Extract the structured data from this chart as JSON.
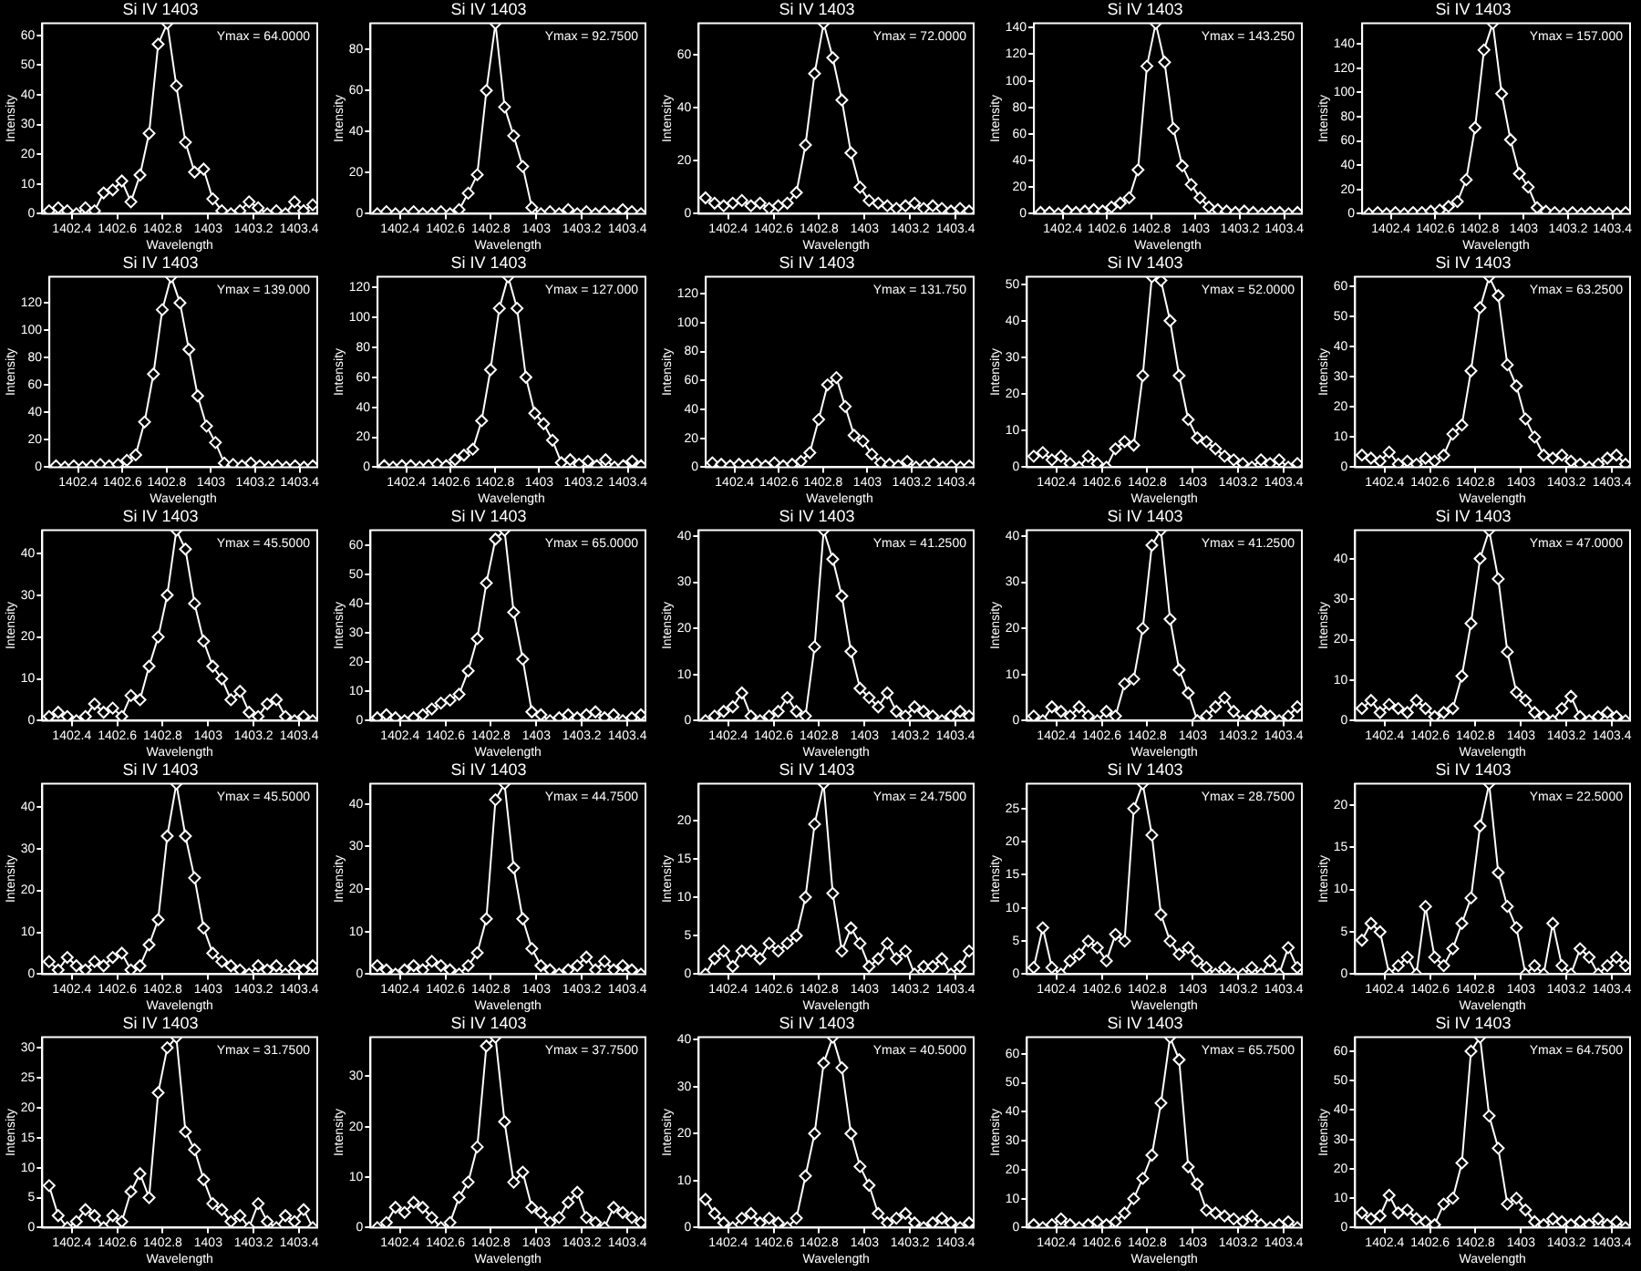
{
  "chart_data": [
    {
      "type": "line",
      "title": "Si IV 1403",
      "xlabel": "Wavelength",
      "ylabel": "Intensity",
      "color": "#ffffff",
      "marker": "diamond",
      "annotations": [
        "Ymax = 64.0000"
      ],
      "xlim": [
        1402.27,
        1403.48
      ],
      "xticks": [
        1402.4,
        1402.6,
        1402.8,
        1403.0,
        1403.2,
        1403.4
      ],
      "ylim": [
        0,
        64
      ],
      "yticks": [
        0,
        10,
        20,
        30,
        40,
        50,
        60
      ],
      "x": [
        1402.3,
        1402.34,
        1402.38,
        1402.42,
        1402.46,
        1402.5,
        1402.54,
        1402.58,
        1402.62,
        1402.66,
        1402.7,
        1402.74,
        1402.78,
        1402.82,
        1402.86,
        1402.9,
        1402.94,
        1402.98,
        1403.02,
        1403.06,
        1403.1,
        1403.14,
        1403.18,
        1403.22,
        1403.26,
        1403.3,
        1403.34,
        1403.38,
        1403.42,
        1403.46
      ],
      "values": [
        1,
        2,
        1,
        0,
        2,
        1,
        7,
        8,
        11,
        4,
        13,
        27,
        57,
        64,
        43,
        24,
        14,
        15,
        5,
        1,
        0,
        1,
        4,
        2,
        0,
        1,
        0,
        4,
        1,
        3
      ]
    },
    {
      "type": "line",
      "title": "Si IV 1403",
      "xlabel": "Wavelength",
      "ylabel": "Intensity",
      "color": "#ffffff",
      "marker": "diamond",
      "annotations": [
        "Ymax = 92.7500"
      ],
      "xlim": [
        1402.27,
        1403.48
      ],
      "xticks": [
        1402.4,
        1402.6,
        1402.8,
        1403.0,
        1403.2,
        1403.4
      ],
      "ylim": [
        0,
        92.75
      ],
      "yticks": [
        0,
        20,
        40,
        60,
        80
      ],
      "x": [
        1402.3,
        1402.34,
        1402.38,
        1402.42,
        1402.46,
        1402.5,
        1402.54,
        1402.58,
        1402.62,
        1402.66,
        1402.7,
        1402.74,
        1402.78,
        1402.82,
        1402.86,
        1402.9,
        1402.94,
        1402.98,
        1403.02,
        1403.06,
        1403.1,
        1403.14,
        1403.18,
        1403.22,
        1403.26,
        1403.3,
        1403.34,
        1403.38,
        1403.42,
        1403.46
      ],
      "values": [
        0,
        1,
        0,
        0,
        1,
        0,
        0,
        1,
        0,
        2,
        10,
        19,
        60,
        92.75,
        52,
        38,
        23,
        3,
        0,
        1,
        0,
        2,
        0,
        1,
        0,
        1,
        0,
        2,
        1,
        0
      ]
    },
    {
      "type": "line",
      "title": "Si IV 1403",
      "xlabel": "Wavelength",
      "ylabel": "Intensity",
      "color": "#ffffff",
      "marker": "diamond",
      "annotations": [
        "Ymax = 72.0000"
      ],
      "xlim": [
        1402.27,
        1403.48
      ],
      "xticks": [
        1402.4,
        1402.6,
        1402.8,
        1403.0,
        1403.2,
        1403.4
      ],
      "ylim": [
        0,
        72
      ],
      "yticks": [
        0,
        20,
        40,
        60
      ],
      "x": [
        1402.3,
        1402.34,
        1402.38,
        1402.42,
        1402.46,
        1402.5,
        1402.54,
        1402.58,
        1402.62,
        1402.66,
        1402.7,
        1402.74,
        1402.78,
        1402.82,
        1402.86,
        1402.9,
        1402.94,
        1402.98,
        1403.02,
        1403.06,
        1403.1,
        1403.14,
        1403.18,
        1403.22,
        1403.26,
        1403.3,
        1403.34,
        1403.38,
        1403.42,
        1403.46
      ],
      "values": [
        6,
        4,
        3,
        4,
        5,
        3,
        4,
        2,
        3,
        4,
        8,
        26,
        53,
        72,
        59,
        43,
        23,
        10,
        5,
        4,
        3,
        2,
        3,
        4,
        2,
        3,
        2,
        1,
        2,
        1
      ]
    },
    {
      "type": "line",
      "title": "Si IV 1403",
      "xlabel": "Wavelength",
      "ylabel": "Intensity",
      "color": "#ffffff",
      "marker": "diamond",
      "annotations": [
        "Ymax = 143.250"
      ],
      "xlim": [
        1402.27,
        1403.48
      ],
      "xticks": [
        1402.4,
        1402.6,
        1402.8,
        1403.0,
        1403.2,
        1403.4
      ],
      "ylim": [
        0,
        143.25
      ],
      "yticks": [
        0,
        20,
        40,
        60,
        80,
        100,
        120,
        140
      ],
      "x": [
        1402.3,
        1402.34,
        1402.38,
        1402.42,
        1402.46,
        1402.5,
        1402.54,
        1402.58,
        1402.62,
        1402.66,
        1402.7,
        1402.74,
        1402.78,
        1402.82,
        1402.86,
        1402.9,
        1402.94,
        1402.98,
        1403.02,
        1403.06,
        1403.1,
        1403.14,
        1403.18,
        1403.22,
        1403.26,
        1403.3,
        1403.34,
        1403.38,
        1403.42,
        1403.46
      ],
      "values": [
        1,
        1,
        0,
        2,
        1,
        2,
        3,
        2,
        5,
        8,
        12,
        33,
        111,
        143.25,
        114,
        64,
        36,
        22,
        12,
        5,
        3,
        2,
        1,
        2,
        1,
        0,
        1,
        1,
        0,
        1
      ]
    },
    {
      "type": "line",
      "title": "Si IV 1403",
      "xlabel": "Wavelength",
      "ylabel": "Intensity",
      "color": "#ffffff",
      "marker": "diamond",
      "annotations": [
        "Ymax = 157.000"
      ],
      "xlim": [
        1402.27,
        1403.48
      ],
      "xticks": [
        1402.4,
        1402.6,
        1402.8,
        1403.0,
        1403.2,
        1403.4
      ],
      "ylim": [
        0,
        157
      ],
      "yticks": [
        0,
        20,
        40,
        60,
        80,
        100,
        120,
        140
      ],
      "x": [
        1402.3,
        1402.34,
        1402.38,
        1402.42,
        1402.46,
        1402.5,
        1402.54,
        1402.58,
        1402.62,
        1402.66,
        1402.7,
        1402.74,
        1402.78,
        1402.82,
        1402.86,
        1402.9,
        1402.94,
        1402.98,
        1403.02,
        1403.06,
        1403.1,
        1403.14,
        1403.18,
        1403.22,
        1403.26,
        1403.3,
        1403.34,
        1403.38,
        1403.42,
        1403.46
      ],
      "values": [
        0,
        1,
        0,
        1,
        0,
        1,
        1,
        2,
        3,
        6,
        10,
        28,
        71,
        135,
        157,
        99,
        61,
        33,
        22,
        5,
        2,
        1,
        0,
        1,
        0,
        1,
        0,
        1,
        0,
        1
      ]
    },
    {
      "type": "line",
      "title": "Si IV 1403",
      "xlabel": "Wavelength",
      "ylabel": "Intensity",
      "color": "#ffffff",
      "marker": "diamond",
      "annotations": [
        "Ymax = 139.000"
      ],
      "xlim": [
        1402.27,
        1403.48
      ],
      "xticks": [
        1402.4,
        1402.6,
        1402.8,
        1403.0,
        1403.2,
        1403.4
      ],
      "ylim": [
        0,
        139
      ],
      "yticks": [
        0,
        20,
        40,
        60,
        80,
        100,
        120
      ],
      "x": [
        1402.3,
        1402.34,
        1402.38,
        1402.42,
        1402.46,
        1402.5,
        1402.54,
        1402.58,
        1402.62,
        1402.66,
        1402.7,
        1402.74,
        1402.78,
        1402.82,
        1402.86,
        1402.9,
        1402.94,
        1402.98,
        1403.02,
        1403.06,
        1403.1,
        1403.14,
        1403.18,
        1403.22,
        1403.26,
        1403.3,
        1403.34,
        1403.38,
        1403.42,
        1403.46
      ],
      "values": [
        1,
        0,
        1,
        0,
        1,
        2,
        1,
        2,
        5,
        9,
        33,
        68,
        115,
        139,
        120,
        86,
        52,
        30,
        18,
        3,
        2,
        1,
        3,
        1,
        0,
        1,
        0,
        1,
        0,
        1
      ]
    },
    {
      "type": "line",
      "title": "Si IV 1403",
      "xlabel": "Wavelength",
      "ylabel": "Intensity",
      "color": "#ffffff",
      "marker": "diamond",
      "annotations": [
        "Ymax = 127.000"
      ],
      "xlim": [
        1402.27,
        1403.48
      ],
      "xticks": [
        1402.4,
        1402.6,
        1402.8,
        1403.0,
        1403.2,
        1403.4
      ],
      "ylim": [
        0,
        127
      ],
      "yticks": [
        0,
        20,
        40,
        60,
        80,
        100,
        120
      ],
      "x": [
        1402.3,
        1402.34,
        1402.38,
        1402.42,
        1402.46,
        1402.5,
        1402.54,
        1402.58,
        1402.62,
        1402.66,
        1402.7,
        1402.74,
        1402.78,
        1402.82,
        1402.86,
        1402.9,
        1402.94,
        1402.98,
        1403.02,
        1403.06,
        1403.1,
        1403.14,
        1403.18,
        1403.22,
        1403.26,
        1403.3,
        1403.34,
        1403.38,
        1403.42,
        1403.46
      ],
      "values": [
        1,
        0,
        1,
        1,
        0,
        1,
        2,
        1,
        5,
        8,
        12,
        31,
        65,
        106,
        127,
        106,
        60,
        36,
        29,
        18,
        3,
        5,
        2,
        4,
        1,
        5,
        0,
        1,
        4,
        1
      ]
    },
    {
      "type": "line",
      "title": "Si IV 1403",
      "xlabel": "Wavelength",
      "ylabel": "Intensity",
      "color": "#ffffff",
      "marker": "diamond",
      "annotations": [
        "Ymax = 131.750"
      ],
      "xlim": [
        1402.27,
        1403.48
      ],
      "xticks": [
        1402.4,
        1402.6,
        1402.8,
        1403.0,
        1403.2,
        1403.4
      ],
      "ylim": [
        0,
        131.75
      ],
      "yticks": [
        0,
        20,
        40,
        60,
        80,
        100,
        120
      ],
      "x": [
        1402.3,
        1402.34,
        1402.38,
        1402.42,
        1402.46,
        1402.5,
        1402.54,
        1402.58,
        1402.62,
        1402.66,
        1402.7,
        1402.74,
        1402.78,
        1402.82,
        1402.86,
        1402.9,
        1402.94,
        1402.98,
        1403.02,
        1403.06,
        1403.1,
        1403.14,
        1403.18,
        1403.22,
        1403.26,
        1403.3,
        1403.34,
        1403.38,
        1403.42,
        1403.46
      ],
      "values": [
        3,
        2,
        1,
        2,
        1,
        2,
        1,
        3,
        1,
        2,
        4,
        10,
        33,
        57,
        62,
        42,
        22,
        18,
        9,
        3,
        2,
        1,
        4,
        0,
        1,
        2,
        0,
        1,
        0,
        1
      ]
    },
    {
      "type": "line",
      "title": "Si IV 1403",
      "xlabel": "Wavelength",
      "ylabel": "Intensity",
      "color": "#ffffff",
      "marker": "diamond",
      "annotations": [
        "Ymax = 52.0000"
      ],
      "xlim": [
        1402.27,
        1403.48
      ],
      "xticks": [
        1402.4,
        1402.6,
        1402.8,
        1403.0,
        1403.2,
        1403.4
      ],
      "ylim": [
        0,
        52
      ],
      "yticks": [
        0,
        10,
        20,
        30,
        40,
        50
      ],
      "x": [
        1402.3,
        1402.34,
        1402.38,
        1402.42,
        1402.46,
        1402.5,
        1402.54,
        1402.58,
        1402.62,
        1402.66,
        1402.7,
        1402.74,
        1402.78,
        1402.82,
        1402.86,
        1402.9,
        1402.94,
        1402.98,
        1403.02,
        1403.06,
        1403.1,
        1403.14,
        1403.18,
        1403.22,
        1403.26,
        1403.3,
        1403.34,
        1403.38,
        1403.42,
        1403.46
      ],
      "values": [
        3,
        4,
        2,
        3,
        1,
        0,
        3,
        1,
        0,
        5,
        7,
        6,
        25,
        52,
        51,
        40,
        25,
        13,
        8,
        7,
        5,
        3,
        2,
        1,
        0,
        2,
        1,
        2,
        0,
        1
      ]
    },
    {
      "type": "line",
      "title": "Si IV 1403",
      "xlabel": "Wavelength",
      "ylabel": "Intensity",
      "color": "#ffffff",
      "marker": "diamond",
      "annotations": [
        "Ymax = 63.2500"
      ],
      "xlim": [
        1402.27,
        1403.48
      ],
      "xticks": [
        1402.4,
        1402.6,
        1402.8,
        1403.0,
        1403.2,
        1403.4
      ],
      "ylim": [
        0,
        63.25
      ],
      "yticks": [
        0,
        10,
        20,
        30,
        40,
        50,
        60
      ],
      "x": [
        1402.3,
        1402.34,
        1402.38,
        1402.42,
        1402.46,
        1402.5,
        1402.54,
        1402.58,
        1402.62,
        1402.66,
        1402.7,
        1402.74,
        1402.78,
        1402.82,
        1402.86,
        1402.9,
        1402.94,
        1402.98,
        1403.02,
        1403.06,
        1403.1,
        1403.14,
        1403.18,
        1403.22,
        1403.26,
        1403.3,
        1403.34,
        1403.38,
        1403.42,
        1403.46
      ],
      "values": [
        4,
        3,
        2,
        5,
        1,
        2,
        1,
        3,
        2,
        4,
        11,
        14,
        32,
        53,
        63.25,
        57,
        34,
        27,
        16,
        10,
        4,
        3,
        4,
        2,
        1,
        0,
        1,
        3,
        4,
        1
      ]
    },
    {
      "type": "line",
      "title": "Si IV 1403",
      "xlabel": "Wavelength",
      "ylabel": "Intensity",
      "color": "#ffffff",
      "marker": "diamond",
      "annotations": [
        "Ymax = 45.5000"
      ],
      "xlim": [
        1402.27,
        1403.48
      ],
      "xticks": [
        1402.4,
        1402.6,
        1402.8,
        1403.0,
        1403.2,
        1403.4
      ],
      "ylim": [
        0,
        45.5
      ],
      "yticks": [
        0,
        10,
        20,
        30,
        40
      ],
      "x": [
        1402.3,
        1402.34,
        1402.38,
        1402.42,
        1402.46,
        1402.5,
        1402.54,
        1402.58,
        1402.62,
        1402.66,
        1402.7,
        1402.74,
        1402.78,
        1402.82,
        1402.86,
        1402.9,
        1402.94,
        1402.98,
        1403.02,
        1403.06,
        1403.1,
        1403.14,
        1403.18,
        1403.22,
        1403.26,
        1403.3,
        1403.34,
        1403.38,
        1403.42,
        1403.46
      ],
      "values": [
        1,
        2,
        1,
        0,
        1,
        4,
        2,
        3,
        1,
        6,
        5,
        13,
        20,
        30,
        45.5,
        41,
        28,
        19,
        13,
        10,
        5,
        7,
        2,
        1,
        4,
        5,
        1,
        0,
        1,
        0
      ]
    },
    {
      "type": "line",
      "title": "Si IV 1403",
      "xlabel": "Wavelength",
      "ylabel": "Intensity",
      "color": "#ffffff",
      "marker": "diamond",
      "annotations": [
        "Ymax = 65.0000"
      ],
      "xlim": [
        1402.27,
        1403.48
      ],
      "xticks": [
        1402.4,
        1402.6,
        1402.8,
        1403.0,
        1403.2,
        1403.4
      ],
      "ylim": [
        0,
        65
      ],
      "yticks": [
        0,
        10,
        20,
        30,
        40,
        50,
        60
      ],
      "x": [
        1402.3,
        1402.34,
        1402.38,
        1402.42,
        1402.46,
        1402.5,
        1402.54,
        1402.58,
        1402.62,
        1402.66,
        1402.7,
        1402.74,
        1402.78,
        1402.82,
        1402.86,
        1402.9,
        1402.94,
        1402.98,
        1403.02,
        1403.06,
        1403.1,
        1403.14,
        1403.18,
        1403.22,
        1403.26,
        1403.3,
        1403.34,
        1403.38,
        1403.42,
        1403.46
      ],
      "values": [
        1,
        2,
        1,
        0,
        1,
        2,
        4,
        6,
        7,
        9,
        17,
        28,
        47,
        62,
        65,
        37,
        21,
        3,
        2,
        0,
        1,
        2,
        1,
        2,
        3,
        1,
        2,
        0,
        1,
        2
      ]
    },
    {
      "type": "line",
      "title": "Si IV 1403",
      "xlabel": "Wavelength",
      "ylabel": "Intensity",
      "color": "#ffffff",
      "marker": "diamond",
      "annotations": [
        "Ymax = 41.2500"
      ],
      "xlim": [
        1402.27,
        1403.48
      ],
      "xticks": [
        1402.4,
        1402.6,
        1402.8,
        1403.0,
        1403.2,
        1403.4
      ],
      "ylim": [
        0,
        41.25
      ],
      "yticks": [
        0,
        10,
        20,
        30,
        40
      ],
      "x": [
        1402.3,
        1402.34,
        1402.38,
        1402.42,
        1402.46,
        1402.5,
        1402.54,
        1402.58,
        1402.62,
        1402.66,
        1402.7,
        1402.74,
        1402.78,
        1402.82,
        1402.86,
        1402.9,
        1402.94,
        1402.98,
        1403.02,
        1403.06,
        1403.1,
        1403.14,
        1403.18,
        1403.22,
        1403.26,
        1403.3,
        1403.34,
        1403.38,
        1403.42,
        1403.46
      ],
      "values": [
        0,
        1,
        2,
        3,
        6,
        1,
        0,
        1,
        2,
        5,
        2,
        1,
        16,
        41.25,
        35,
        27,
        15,
        7,
        5,
        3,
        6,
        2,
        1,
        3,
        2,
        1,
        0,
        1,
        2,
        1
      ]
    },
    {
      "type": "line",
      "title": "Si IV 1403",
      "xlabel": "Wavelength",
      "ylabel": "Intensity",
      "color": "#ffffff",
      "marker": "diamond",
      "annotations": [
        "Ymax = 41.2500"
      ],
      "xlim": [
        1402.27,
        1403.48
      ],
      "xticks": [
        1402.4,
        1402.6,
        1402.8,
        1403.0,
        1403.2,
        1403.4
      ],
      "ylim": [
        0,
        41.25
      ],
      "yticks": [
        0,
        10,
        20,
        30,
        40
      ],
      "x": [
        1402.3,
        1402.34,
        1402.38,
        1402.42,
        1402.46,
        1402.5,
        1402.54,
        1402.58,
        1402.62,
        1402.66,
        1402.7,
        1402.74,
        1402.78,
        1402.82,
        1402.86,
        1402.9,
        1402.94,
        1402.98,
        1403.02,
        1403.06,
        1403.1,
        1403.14,
        1403.18,
        1403.22,
        1403.26,
        1403.3,
        1403.34,
        1403.38,
        1403.42,
        1403.46
      ],
      "values": [
        1,
        0,
        3,
        2,
        1,
        3,
        1,
        0,
        2,
        1,
        8,
        9,
        20,
        38,
        41.25,
        22,
        11,
        6,
        0,
        1,
        3,
        5,
        2,
        0,
        1,
        2,
        1,
        0,
        1,
        3
      ]
    },
    {
      "type": "line",
      "title": "Si IV 1403",
      "xlabel": "Wavelength",
      "ylabel": "Intensity",
      "color": "#ffffff",
      "marker": "diamond",
      "annotations": [
        "Ymax = 47.0000"
      ],
      "xlim": [
        1402.27,
        1403.48
      ],
      "xticks": [
        1402.4,
        1402.6,
        1402.8,
        1403.0,
        1403.2,
        1403.4
      ],
      "ylim": [
        0,
        47
      ],
      "yticks": [
        0,
        10,
        20,
        30,
        40
      ],
      "x": [
        1402.3,
        1402.34,
        1402.38,
        1402.42,
        1402.46,
        1402.5,
        1402.54,
        1402.58,
        1402.62,
        1402.66,
        1402.7,
        1402.74,
        1402.78,
        1402.82,
        1402.86,
        1402.9,
        1402.94,
        1402.98,
        1403.02,
        1403.06,
        1403.1,
        1403.14,
        1403.18,
        1403.22,
        1403.26,
        1403.3,
        1403.34,
        1403.38,
        1403.42,
        1403.46
      ],
      "values": [
        3,
        5,
        2,
        4,
        3,
        2,
        5,
        3,
        1,
        2,
        3,
        11,
        24,
        40,
        47,
        35,
        17,
        7,
        5,
        2,
        1,
        0,
        3,
        6,
        1,
        0,
        1,
        2,
        1,
        0
      ]
    },
    {
      "type": "line",
      "title": "Si IV 1403",
      "xlabel": "Wavelength",
      "ylabel": "Intensity",
      "color": "#ffffff",
      "marker": "diamond",
      "annotations": [
        "Ymax = 45.5000"
      ],
      "xlim": [
        1402.27,
        1403.48
      ],
      "xticks": [
        1402.4,
        1402.6,
        1402.8,
        1403.0,
        1403.2,
        1403.4
      ],
      "ylim": [
        0,
        45.5
      ],
      "yticks": [
        0,
        10,
        20,
        30,
        40
      ],
      "x": [
        1402.3,
        1402.34,
        1402.38,
        1402.42,
        1402.46,
        1402.5,
        1402.54,
        1402.58,
        1402.62,
        1402.66,
        1402.7,
        1402.74,
        1402.78,
        1402.82,
        1402.86,
        1402.9,
        1402.94,
        1402.98,
        1403.02,
        1403.06,
        1403.1,
        1403.14,
        1403.18,
        1403.22,
        1403.26,
        1403.3,
        1403.34,
        1403.38,
        1403.42,
        1403.46
      ],
      "values": [
        3,
        1,
        4,
        2,
        1,
        3,
        2,
        4,
        5,
        1,
        2,
        7,
        13,
        33,
        45.5,
        33,
        23,
        11,
        5,
        3,
        2,
        1,
        0,
        2,
        1,
        2,
        0,
        2,
        1,
        2
      ]
    },
    {
      "type": "line",
      "title": "Si IV 1403",
      "xlabel": "Wavelength",
      "ylabel": "Intensity",
      "color": "#ffffff",
      "marker": "diamond",
      "annotations": [
        "Ymax = 44.7500"
      ],
      "xlim": [
        1402.27,
        1403.48
      ],
      "xticks": [
        1402.4,
        1402.6,
        1402.8,
        1403.0,
        1403.2,
        1403.4
      ],
      "ylim": [
        0,
        44.75
      ],
      "yticks": [
        0,
        10,
        20,
        30,
        40
      ],
      "x": [
        1402.3,
        1402.34,
        1402.38,
        1402.42,
        1402.46,
        1402.5,
        1402.54,
        1402.58,
        1402.62,
        1402.66,
        1402.7,
        1402.74,
        1402.78,
        1402.82,
        1402.86,
        1402.9,
        1402.94,
        1402.98,
        1403.02,
        1403.06,
        1403.1,
        1403.14,
        1403.18,
        1403.22,
        1403.26,
        1403.3,
        1403.34,
        1403.38,
        1403.42,
        1403.46
      ],
      "values": [
        2,
        1,
        0,
        1,
        2,
        1,
        3,
        2,
        1,
        0,
        2,
        5,
        13,
        41,
        44.75,
        25,
        13,
        6,
        2,
        1,
        0,
        1,
        2,
        4,
        1,
        3,
        1,
        2,
        1,
        0
      ]
    },
    {
      "type": "line",
      "title": "Si IV 1403",
      "xlabel": "Wavelength",
      "ylabel": "Intensity",
      "color": "#ffffff",
      "marker": "diamond",
      "annotations": [
        "Ymax = 24.7500"
      ],
      "xlim": [
        1402.27,
        1403.48
      ],
      "xticks": [
        1402.4,
        1402.6,
        1402.8,
        1403.0,
        1403.2,
        1403.4
      ],
      "ylim": [
        0,
        24.75
      ],
      "yticks": [
        0,
        5,
        10,
        15,
        20
      ],
      "x": [
        1402.3,
        1402.34,
        1402.38,
        1402.42,
        1402.46,
        1402.5,
        1402.54,
        1402.58,
        1402.62,
        1402.66,
        1402.7,
        1402.74,
        1402.78,
        1402.82,
        1402.86,
        1402.9,
        1402.94,
        1402.98,
        1403.02,
        1403.06,
        1403.1,
        1403.14,
        1403.18,
        1403.22,
        1403.26,
        1403.3,
        1403.34,
        1403.38,
        1403.42,
        1403.46
      ],
      "values": [
        0,
        2,
        3,
        1,
        3,
        3,
        2,
        4,
        3,
        4,
        5,
        10,
        19.5,
        24.75,
        10.5,
        3,
        6,
        4,
        1,
        2,
        4,
        2,
        3,
        0,
        1,
        1,
        2,
        0,
        1,
        3
      ]
    },
    {
      "type": "line",
      "title": "Si IV 1403",
      "xlabel": "Wavelength",
      "ylabel": "Intensity",
      "color": "#ffffff",
      "marker": "diamond",
      "annotations": [
        "Ymax = 28.7500"
      ],
      "xlim": [
        1402.27,
        1403.48
      ],
      "xticks": [
        1402.4,
        1402.6,
        1402.8,
        1403.0,
        1403.2,
        1403.4
      ],
      "ylim": [
        0,
        28.75
      ],
      "yticks": [
        0,
        5,
        10,
        15,
        20,
        25
      ],
      "x": [
        1402.3,
        1402.34,
        1402.38,
        1402.42,
        1402.46,
        1402.5,
        1402.54,
        1402.58,
        1402.62,
        1402.66,
        1402.7,
        1402.74,
        1402.78,
        1402.82,
        1402.86,
        1402.9,
        1402.94,
        1402.98,
        1403.02,
        1403.06,
        1403.1,
        1403.14,
        1403.18,
        1403.22,
        1403.26,
        1403.3,
        1403.34,
        1403.38,
        1403.42,
        1403.46
      ],
      "values": [
        1,
        7,
        1,
        0,
        2,
        3,
        5,
        4,
        2,
        6,
        5,
        25,
        28.75,
        21,
        9,
        5,
        3,
        4,
        2,
        1,
        0,
        1,
        0,
        0,
        1,
        0,
        2,
        0,
        4,
        1
      ]
    },
    {
      "type": "line",
      "title": "Si IV 1403",
      "xlabel": "Wavelength",
      "ylabel": "Intensity",
      "color": "#ffffff",
      "marker": "diamond",
      "annotations": [
        "Ymax = 22.5000"
      ],
      "xlim": [
        1402.27,
        1403.48
      ],
      "xticks": [
        1402.4,
        1402.6,
        1402.8,
        1403.0,
        1403.2,
        1403.4
      ],
      "ylim": [
        0,
        22.5
      ],
      "yticks": [
        0,
        5,
        10,
        15,
        20
      ],
      "x": [
        1402.3,
        1402.34,
        1402.38,
        1402.42,
        1402.46,
        1402.5,
        1402.54,
        1402.58,
        1402.62,
        1402.66,
        1402.7,
        1402.74,
        1402.78,
        1402.82,
        1402.86,
        1402.9,
        1402.94,
        1402.98,
        1403.02,
        1403.06,
        1403.1,
        1403.14,
        1403.18,
        1403.22,
        1403.26,
        1403.3,
        1403.34,
        1403.38,
        1403.42,
        1403.46
      ],
      "values": [
        4,
        6,
        5,
        0,
        1,
        2,
        0,
        8,
        2,
        1,
        3,
        6,
        9,
        17.5,
        22.5,
        12,
        8,
        5.5,
        0,
        1,
        0,
        6,
        1,
        0,
        3,
        2,
        0,
        1,
        2,
        1
      ]
    },
    {
      "type": "line",
      "title": "Si IV 1403",
      "xlabel": "Wavelength",
      "ylabel": "Intensity",
      "color": "#ffffff",
      "marker": "diamond",
      "annotations": [
        "Ymax = 31.7500"
      ],
      "xlim": [
        1402.27,
        1403.48
      ],
      "xticks": [
        1402.4,
        1402.6,
        1402.8,
        1403.0,
        1403.2,
        1403.4
      ],
      "ylim": [
        0,
        31.75
      ],
      "yticks": [
        0,
        5,
        10,
        15,
        20,
        25,
        30
      ],
      "x": [
        1402.3,
        1402.34,
        1402.38,
        1402.42,
        1402.46,
        1402.5,
        1402.54,
        1402.58,
        1402.62,
        1402.66,
        1402.7,
        1402.74,
        1402.78,
        1402.82,
        1402.86,
        1402.9,
        1402.94,
        1402.98,
        1403.02,
        1403.06,
        1403.1,
        1403.14,
        1403.18,
        1403.22,
        1403.26,
        1403.3,
        1403.34,
        1403.38,
        1403.42,
        1403.46
      ],
      "values": [
        7,
        2,
        0,
        1,
        3,
        2,
        0,
        2,
        1,
        6,
        9,
        5,
        22.5,
        30,
        31.75,
        16,
        13,
        8,
        4,
        3,
        1,
        2,
        0,
        4,
        1,
        0,
        2,
        1,
        3,
        0
      ]
    },
    {
      "type": "line",
      "title": "Si IV 1403",
      "xlabel": "Wavelength",
      "ylabel": "Intensity",
      "color": "#ffffff",
      "marker": "diamond",
      "annotations": [
        "Ymax = 37.7500"
      ],
      "xlim": [
        1402.27,
        1403.48
      ],
      "xticks": [
        1402.4,
        1402.6,
        1402.8,
        1403.0,
        1403.2,
        1403.4
      ],
      "ylim": [
        0,
        37.75
      ],
      "yticks": [
        0,
        10,
        20,
        30
      ],
      "x": [
        1402.3,
        1402.34,
        1402.38,
        1402.42,
        1402.46,
        1402.5,
        1402.54,
        1402.58,
        1402.62,
        1402.66,
        1402.7,
        1402.74,
        1402.78,
        1402.82,
        1402.86,
        1402.9,
        1402.94,
        1402.98,
        1403.02,
        1403.06,
        1403.1,
        1403.14,
        1403.18,
        1403.22,
        1403.26,
        1403.3,
        1403.34,
        1403.38,
        1403.42,
        1403.46
      ],
      "values": [
        0,
        1,
        4,
        3,
        5,
        4,
        2,
        0,
        1,
        6,
        9,
        16,
        36,
        37.75,
        21,
        9,
        11,
        4,
        3,
        1,
        2,
        5,
        7,
        2,
        1,
        0,
        4,
        3,
        2,
        1
      ]
    },
    {
      "type": "line",
      "title": "Si IV 1403",
      "xlabel": "Wavelength",
      "ylabel": "Intensity",
      "color": "#ffffff",
      "marker": "diamond",
      "annotations": [
        "Ymax = 40.5000"
      ],
      "xlim": [
        1402.27,
        1403.48
      ],
      "xticks": [
        1402.4,
        1402.6,
        1402.8,
        1403.0,
        1403.2,
        1403.4
      ],
      "ylim": [
        0,
        40.5
      ],
      "yticks": [
        0,
        10,
        20,
        30,
        40
      ],
      "x": [
        1402.3,
        1402.34,
        1402.38,
        1402.42,
        1402.46,
        1402.5,
        1402.54,
        1402.58,
        1402.62,
        1402.66,
        1402.7,
        1402.74,
        1402.78,
        1402.82,
        1402.86,
        1402.9,
        1402.94,
        1402.98,
        1403.02,
        1403.06,
        1403.1,
        1403.14,
        1403.18,
        1403.22,
        1403.26,
        1403.3,
        1403.34,
        1403.38,
        1403.42,
        1403.46
      ],
      "values": [
        6,
        3,
        1,
        0,
        2,
        3,
        1,
        2,
        1,
        0,
        2,
        11,
        20,
        35,
        40.5,
        34,
        20,
        13,
        9,
        3,
        1,
        2,
        3,
        1,
        0,
        1,
        2,
        1,
        0,
        1
      ]
    },
    {
      "type": "line",
      "title": "Si IV 1403",
      "xlabel": "Wavelength",
      "ylabel": "Intensity",
      "color": "#ffffff",
      "marker": "diamond",
      "annotations": [
        "Ymax = 65.7500"
      ],
      "xlim": [
        1402.27,
        1403.48
      ],
      "xticks": [
        1402.4,
        1402.6,
        1402.8,
        1403.0,
        1403.2,
        1403.4
      ],
      "ylim": [
        0,
        65.75
      ],
      "yticks": [
        0,
        10,
        20,
        30,
        40,
        50,
        60
      ],
      "x": [
        1402.3,
        1402.34,
        1402.38,
        1402.42,
        1402.46,
        1402.5,
        1402.54,
        1402.58,
        1402.62,
        1402.66,
        1402.7,
        1402.74,
        1402.78,
        1402.82,
        1402.86,
        1402.9,
        1402.94,
        1402.98,
        1403.02,
        1403.06,
        1403.1,
        1403.14,
        1403.18,
        1403.22,
        1403.26,
        1403.3,
        1403.34,
        1403.38,
        1403.42,
        1403.46
      ],
      "values": [
        1,
        0,
        1,
        3,
        1,
        0,
        1,
        2,
        1,
        2,
        5,
        10,
        17,
        25,
        43,
        65.75,
        58,
        21,
        15,
        6,
        5,
        4,
        3,
        2,
        4,
        1,
        0,
        1,
        2,
        0
      ]
    },
    {
      "type": "line",
      "title": "Si IV 1403",
      "xlabel": "Wavelength",
      "ylabel": "Intensity",
      "color": "#ffffff",
      "marker": "diamond",
      "annotations": [
        "Ymax = 64.7500"
      ],
      "xlim": [
        1402.27,
        1403.48
      ],
      "xticks": [
        1402.4,
        1402.6,
        1402.8,
        1403.0,
        1403.2,
        1403.4
      ],
      "ylim": [
        0,
        64.75
      ],
      "yticks": [
        0,
        10,
        20,
        30,
        40,
        50,
        60
      ],
      "x": [
        1402.3,
        1402.34,
        1402.38,
        1402.42,
        1402.46,
        1402.5,
        1402.54,
        1402.58,
        1402.62,
        1402.66,
        1402.7,
        1402.74,
        1402.78,
        1402.82,
        1402.86,
        1402.9,
        1402.94,
        1402.98,
        1403.02,
        1403.06,
        1403.1,
        1403.14,
        1403.18,
        1403.22,
        1403.26,
        1403.3,
        1403.34,
        1403.38,
        1403.42,
        1403.46
      ],
      "values": [
        5,
        3,
        4,
        11,
        5,
        6,
        3,
        2,
        1,
        8,
        10,
        22,
        60,
        64.75,
        38,
        27,
        8,
        10,
        6,
        2,
        1,
        3,
        2,
        1,
        2,
        1,
        3,
        1,
        2,
        0
      ]
    }
  ]
}
